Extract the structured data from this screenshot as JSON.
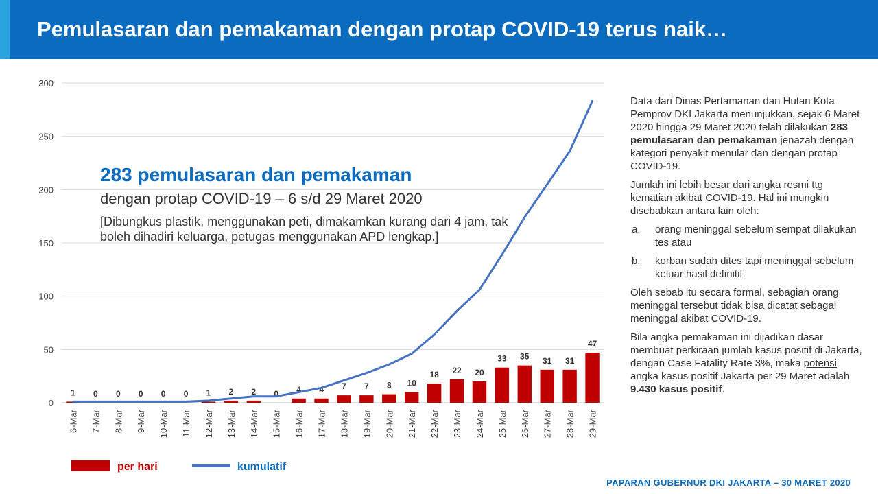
{
  "header": {
    "title": "Pemulasaran dan pemakaman dengan protap COVID-19 terus naik…"
  },
  "overlay": {
    "title": "283 pemulasaran dan pemakaman",
    "subtitle": "dengan protap COVID-19 – 6 s/d 29 Maret 2020",
    "description": "[Dibungkus plastik, menggunakan peti, dimakamkan kurang dari 4 jam, tak boleh dihadiri keluarga, petugas menggunakan APD lengkap.]"
  },
  "side": {
    "p1_a": "Data dari Dinas Pertamanan dan Hutan Kota Pemprov DKI Jakarta menunjukkan, sejak 6 Maret 2020 hingga 29 Maret 2020 telah dilakukan ",
    "p1_bold": "283 pemulasaran dan pemakaman",
    "p1_b": " jenazah dengan kategori penyakit menular dan dengan protap COVID-19.",
    "p2": "Jumlah ini lebih besar dari angka resmi ttg kematian akibat COVID-19. Hal ini mungkin disebabkan antara lain oleh:",
    "list": [
      {
        "marker": "a.",
        "text": "orang meninggal sebelum sempat dilakukan tes atau"
      },
      {
        "marker": "b.",
        "text": "korban sudah dites tapi meninggal sebelum keluar hasil definitif."
      }
    ],
    "p3": "Oleh sebab itu secara formal, sebagian orang meninggal tersebut tidak bisa dicatat sebagai meninggal akibat COVID-19.",
    "p4_a": "Bila angka pemakaman ini dijadikan dasar membuat perkiraan jumlah kasus positif di Jakarta, dengan Case Fatality Rate 3%, maka ",
    "p4_u": "potensi",
    "p4_b": " angka kasus positif Jakarta per 29 Maret adalah ",
    "p4_bold": "9.430 kasus positif",
    "p4_c": "."
  },
  "footer": {
    "text": "PAPARAN GUBERNUR DKI JAKARTA – 30 MARET 2020"
  },
  "chart_data": {
    "type": "bar",
    "categories": [
      "6-Mar",
      "7-Mar",
      "8-Mar",
      "9-Mar",
      "10-Mar",
      "11-Mar",
      "12-Mar",
      "13-Mar",
      "14-Mar",
      "15-Mar",
      "16-Mar",
      "17-Mar",
      "18-Mar",
      "19-Mar",
      "20-Mar",
      "21-Mar",
      "22-Mar",
      "23-Mar",
      "24-Mar",
      "25-Mar",
      "26-Mar",
      "27-Mar",
      "28-Mar",
      "29-Mar"
    ],
    "ylim": [
      0,
      300
    ],
    "yticks": [
      0,
      50,
      100,
      150,
      200,
      250,
      300
    ],
    "grid": true,
    "legend_position": "bottom-left",
    "series": [
      {
        "name": "per hari",
        "type": "bar",
        "color": "#c00000",
        "values": [
          1,
          0,
          0,
          0,
          0,
          0,
          1,
          2,
          2,
          0,
          4,
          4,
          7,
          7,
          8,
          10,
          18,
          22,
          20,
          33,
          35,
          31,
          31,
          47
        ]
      },
      {
        "name": "kumulatif",
        "type": "line",
        "color": "#4472c4",
        "values": [
          1,
          1,
          1,
          1,
          1,
          1,
          2,
          4,
          6,
          6,
          10,
          14,
          21,
          28,
          36,
          46,
          64,
          86,
          106,
          139,
          174,
          205,
          236,
          283
        ]
      }
    ]
  }
}
